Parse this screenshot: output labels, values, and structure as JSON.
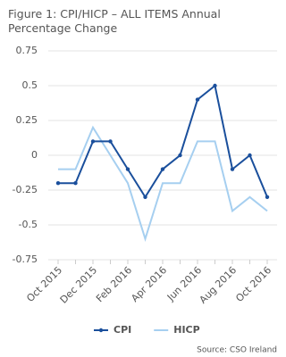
{
  "chart_data": {
    "type": "line",
    "title": "Figure 1: CPI/HICP – ALL ITEMS Annual Percentage Change",
    "categories": [
      "Oct 2015",
      null,
      "Dec 2015",
      null,
      "Feb 2016",
      null,
      "Apr 2016",
      null,
      "Jun 2016",
      null,
      "Aug 2016",
      null,
      "Oct 2016"
    ],
    "series": [
      {
        "name": "CPI",
        "color": "#1a4f9c",
        "markers": true,
        "values": [
          -0.2,
          -0.2,
          0.1,
          0.1,
          -0.1,
          -0.3,
          -0.1,
          0,
          0.4,
          0.5,
          -0.1,
          0,
          -0.3
        ]
      },
      {
        "name": "HICP",
        "color": "#a6cff0",
        "markers": false,
        "values": [
          -0.1,
          -0.1,
          0.2,
          0,
          -0.2,
          -0.6,
          -0.2,
          -0.2,
          0.1,
          0.1,
          -0.4,
          -0.3,
          -0.4
        ]
      }
    ],
    "ylim": [
      -0.75,
      0.75
    ],
    "yticks": [
      0.75,
      0.5,
      0.25,
      0,
      -0.25,
      -0.5,
      -0.75
    ],
    "grid": true,
    "legend": "bottom",
    "source": "Source: CSO Ireland"
  }
}
